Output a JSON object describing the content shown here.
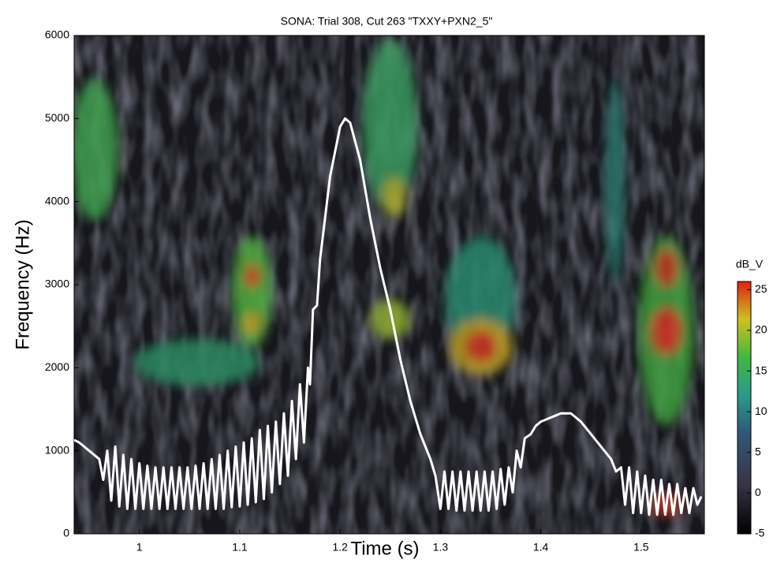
{
  "chart_data": {
    "type": "line",
    "title": "SONA: Trial 308, Cut 263 \"TXXY+PXN2_5\"",
    "x_label": "Time (s)",
    "y_label": "Frequency (Hz)",
    "colorbar_label": "dB_V",
    "xlim": [
      0.935,
      1.563
    ],
    "xticks": [
      1,
      1.1,
      1.2,
      1.3,
      1.4,
      1.5
    ],
    "ylim": [
      0,
      6000
    ],
    "yticks": [
      0,
      1000,
      2000,
      3000,
      4000,
      5000,
      6000
    ],
    "clim": [
      -5,
      26
    ],
    "cticks": [
      -5,
      0,
      5,
      10,
      15,
      20,
      25
    ],
    "color": "#ffffff",
    "x": [
      0.935,
      0.94,
      0.945,
      0.95,
      0.955,
      0.96,
      0.964,
      0.968,
      0.972,
      0.976,
      0.98,
      0.984,
      0.988,
      0.992,
      0.996,
      1,
      1.004,
      1.008,
      1.012,
      1.016,
      1.02,
      1.024,
      1.028,
      1.032,
      1.036,
      1.04,
      1.044,
      1.048,
      1.052,
      1.056,
      1.06,
      1.064,
      1.068,
      1.072,
      1.076,
      1.08,
      1.084,
      1.088,
      1.092,
      1.096,
      1.1,
      1.104,
      1.108,
      1.112,
      1.116,
      1.12,
      1.124,
      1.128,
      1.132,
      1.136,
      1.14,
      1.144,
      1.148,
      1.152,
      1.156,
      1.16,
      1.164,
      1.168,
      1.17,
      1.173,
      1.177,
      1.18,
      1.185,
      1.19,
      1.2,
      1.205,
      1.21,
      1.22,
      1.23,
      1.24,
      1.25,
      1.26,
      1.27,
      1.28,
      1.29,
      1.295,
      1.3,
      1.304,
      1.308,
      1.312,
      1.316,
      1.32,
      1.324,
      1.328,
      1.332,
      1.336,
      1.34,
      1.344,
      1.348,
      1.352,
      1.356,
      1.36,
      1.364,
      1.368,
      1.372,
      1.376,
      1.38,
      1.384,
      1.39,
      1.395,
      1.4,
      1.41,
      1.42,
      1.43,
      1.44,
      1.45,
      1.46,
      1.47,
      1.475,
      1.48,
      1.484,
      1.488,
      1.492,
      1.496,
      1.5,
      1.504,
      1.508,
      1.512,
      1.516,
      1.52,
      1.524,
      1.528,
      1.532,
      1.536,
      1.54,
      1.544,
      1.548,
      1.552,
      1.556,
      1.56
    ],
    "values": [
      1130,
      1100,
      1050,
      1000,
      950,
      900,
      650,
      1000,
      400,
      1050,
      330,
      950,
      300,
      900,
      300,
      850,
      300,
      820,
      300,
      800,
      300,
      800,
      300,
      800,
      300,
      800,
      300,
      800,
      300,
      820,
      300,
      850,
      300,
      900,
      300,
      950,
      300,
      1000,
      320,
      1050,
      330,
      1100,
      350,
      1150,
      380,
      1250,
      420,
      1300,
      500,
      1350,
      600,
      1450,
      700,
      1600,
      900,
      1800,
      1100,
      2000,
      1800,
      2700,
      2750,
      3300,
      3800,
      4300,
      4900,
      5000,
      4950,
      4500,
      3800,
      3200,
      2700,
      2100,
      1600,
      1200,
      900,
      700,
      300,
      750,
      300,
      750,
      280,
      750,
      280,
      750,
      280,
      750,
      280,
      750,
      280,
      750,
      300,
      780,
      350,
      800,
      500,
      1000,
      800,
      1150,
      1200,
      1300,
      1350,
      1400,
      1450,
      1450,
      1350,
      1200,
      1050,
      900,
      750,
      800,
      350,
      800,
      250,
      750,
      250,
      700,
      230,
      650,
      230,
      650,
      230,
      600,
      230,
      600,
      250,
      550,
      250,
      550,
      350,
      450
    ]
  }
}
